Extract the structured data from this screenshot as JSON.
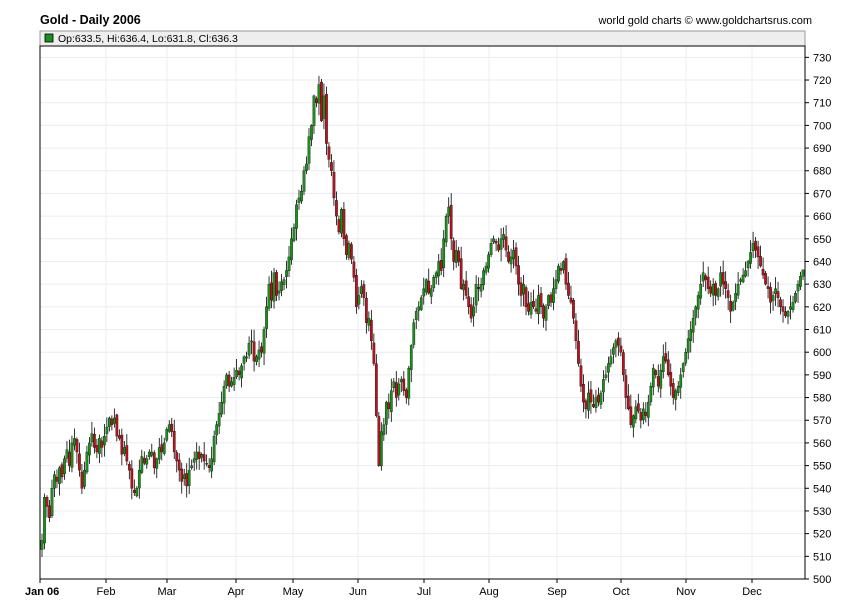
{
  "header": {
    "title": "Gold - Daily 2006",
    "credit": "world gold charts © www.goldchartsrus.com"
  },
  "legend": {
    "ohlc_text": "Op:633.5, Hi:636.4, Lo:631.8, Cl:636.3",
    "swatch_color": "#1a8f1a"
  },
  "colors": {
    "up": "#1a8f1a",
    "down": "#b3141d",
    "wick": "#000000",
    "grid": "#e8edf2"
  },
  "chart_data": {
    "type": "candlestick",
    "title": "Gold - Daily 2006",
    "ylim": [
      500,
      735
    ],
    "yticks": [
      500,
      510,
      520,
      530,
      540,
      550,
      560,
      570,
      580,
      590,
      600,
      610,
      620,
      630,
      640,
      650,
      660,
      670,
      680,
      690,
      700,
      710,
      720,
      730
    ],
    "x_labels": [
      "Jan 06",
      "Feb",
      "Mar",
      "Apr",
      "May",
      "Jun",
      "Jul",
      "Aug",
      "Sep",
      "Oct",
      "Nov",
      "Dec"
    ],
    "last_bar": {
      "open": 633.5,
      "high": 636.4,
      "low": 631.8,
      "close": 636.3
    },
    "closes": [
      517,
      536,
      532,
      527,
      540,
      546,
      543,
      549,
      545,
      553,
      557,
      550,
      560,
      562,
      556,
      548,
      540,
      548,
      556,
      560,
      564,
      558,
      556,
      562,
      558,
      563,
      567,
      571,
      568,
      571,
      563,
      562,
      555,
      558,
      552,
      548,
      540,
      538,
      540,
      548,
      554,
      551,
      553,
      556,
      556,
      549,
      553,
      558,
      556,
      560,
      566,
      568,
      565,
      556,
      552,
      548,
      543,
      546,
      541,
      548,
      550,
      553,
      556,
      553,
      555,
      552,
      551,
      549,
      553,
      563,
      568,
      573,
      578,
      585,
      590,
      585,
      587,
      589,
      592,
      590,
      594,
      598,
      598,
      604,
      605,
      596,
      598,
      601,
      600,
      610,
      620,
      630,
      623,
      635,
      625,
      627,
      631,
      632,
      636,
      642,
      650,
      655,
      665,
      668,
      671,
      680,
      683,
      695,
      700,
      713,
      710,
      718,
      702,
      713,
      692,
      685,
      680,
      668,
      660,
      653,
      663,
      650,
      643,
      648,
      641,
      633,
      620,
      625,
      629,
      624,
      613,
      615,
      605,
      595,
      572,
      550,
      565,
      568,
      578,
      575,
      583,
      587,
      580,
      586,
      588,
      583,
      580,
      593,
      603,
      613,
      618,
      620,
      624,
      628,
      632,
      626,
      628,
      633,
      635,
      640,
      636,
      650,
      660,
      664,
      650,
      640,
      645,
      640,
      628,
      630,
      625,
      620,
      615,
      620,
      630,
      628,
      630,
      636,
      638,
      643,
      648,
      650,
      648,
      645,
      650,
      652,
      645,
      640,
      642,
      645,
      638,
      630,
      625,
      630,
      620,
      618,
      622,
      620,
      618,
      625,
      620,
      615,
      620,
      625,
      622,
      628,
      632,
      638,
      636,
      640,
      630,
      625,
      622,
      615,
      605,
      595,
      585,
      578,
      575,
      582,
      578,
      576,
      580,
      578,
      582,
      588,
      590,
      595,
      598,
      602,
      605,
      603,
      600,
      590,
      580,
      575,
      568,
      572,
      576,
      574,
      570,
      575,
      572,
      578,
      585,
      593,
      590,
      585,
      592,
      598,
      596,
      590,
      585,
      580,
      583,
      585,
      590,
      595,
      600,
      606,
      610,
      615,
      620,
      625,
      630,
      635,
      632,
      628,
      626,
      630,
      625,
      628,
      635,
      630,
      628,
      624,
      618,
      622,
      626,
      630,
      632,
      634,
      636,
      640,
      644,
      648,
      645,
      642,
      638,
      634,
      630,
      628,
      622,
      625,
      628,
      624,
      620,
      618,
      616,
      618,
      620,
      622,
      626,
      630,
      633.5,
      636.3
    ],
    "volatility_note": ""
  }
}
